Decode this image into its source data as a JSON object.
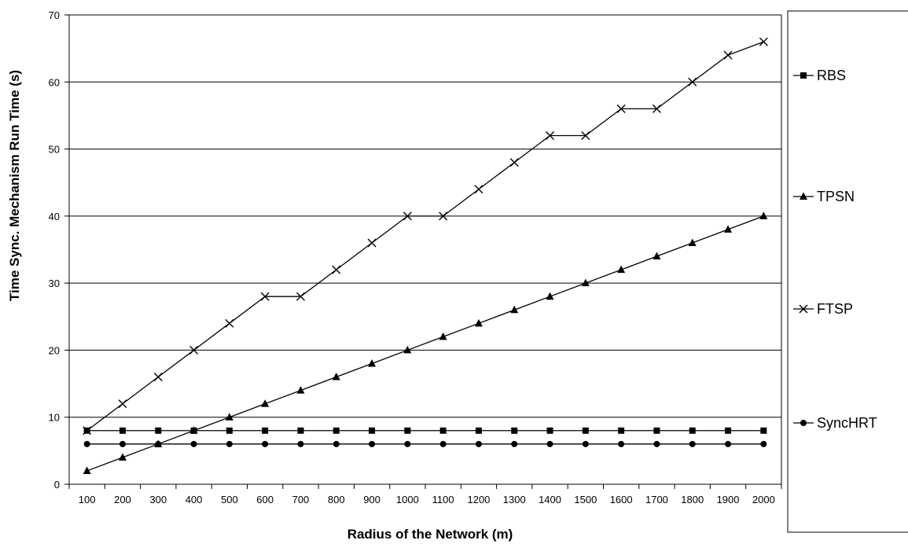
{
  "chart_data": {
    "type": "line",
    "title": "",
    "xlabel": "Radius of the Network (m)",
    "ylabel": "Time Sync. Mechanism Run Time (s)",
    "ylim": [
      0,
      70
    ],
    "yticks": [
      0,
      10,
      20,
      30,
      40,
      50,
      60,
      70
    ],
    "categories": [
      "100",
      "200",
      "300",
      "400",
      "500",
      "600",
      "700",
      "800",
      "900",
      "1000",
      "1100",
      "1200",
      "1300",
      "1400",
      "1500",
      "1600",
      "1700",
      "1800",
      "1900",
      "2000"
    ],
    "grid": "horizontal",
    "legend_position": "right",
    "series": [
      {
        "name": "RBS",
        "marker": "square",
        "color": "#000000",
        "values": [
          8,
          8,
          8,
          8,
          8,
          8,
          8,
          8,
          8,
          8,
          8,
          8,
          8,
          8,
          8,
          8,
          8,
          8,
          8,
          8
        ]
      },
      {
        "name": "TPSN",
        "marker": "triangle",
        "color": "#000000",
        "values": [
          2,
          4,
          6,
          8,
          10,
          12,
          14,
          16,
          18,
          20,
          22,
          24,
          26,
          28,
          30,
          32,
          34,
          36,
          38,
          40
        ]
      },
      {
        "name": "FTSP",
        "marker": "x",
        "color": "#000000",
        "values": [
          8,
          12,
          16,
          20,
          24,
          28,
          28,
          32,
          36,
          40,
          40,
          44,
          48,
          52,
          52,
          56,
          56,
          60,
          64,
          66
        ]
      },
      {
        "name": "SyncHRT",
        "marker": "circle",
        "color": "#000000",
        "values": [
          6,
          6,
          6,
          6,
          6,
          6,
          6,
          6,
          6,
          6,
          6,
          6,
          6,
          6,
          6,
          6,
          6,
          6,
          6,
          6
        ]
      }
    ]
  }
}
